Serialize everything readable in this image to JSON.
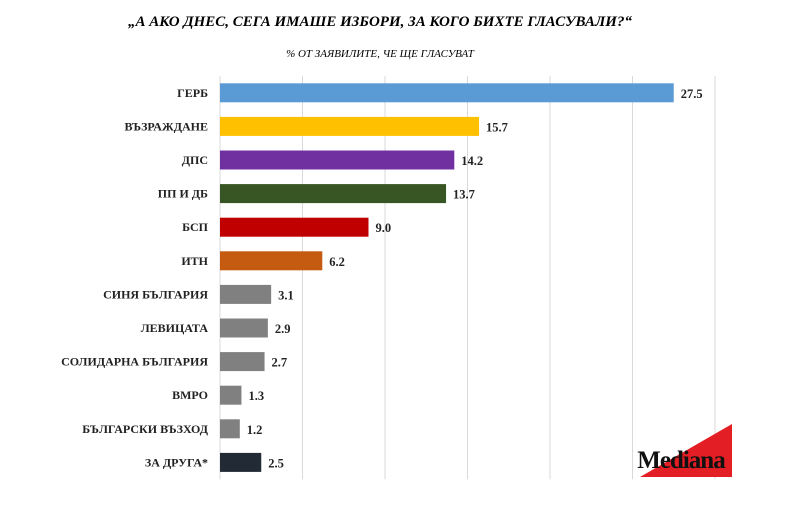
{
  "chart_data": {
    "type": "bar",
    "orientation": "horizontal",
    "title": "„А АКО ДНЕС, СЕГА ИМАШЕ ИЗБОРИ, ЗА КОГО БИХТЕ ГЛАСУВАЛИ?“",
    "subtitle": "% ОТ ЗАЯВИЛИТЕ, ЧЕ ЩЕ ГЛАСУВАТ",
    "xlim": [
      0,
      30
    ],
    "grid": true,
    "categories": [
      "ГЕРБ",
      "ВЪЗРАЖДАНЕ",
      "ДПС",
      "ПП И ДБ",
      "БСП",
      "ИТН",
      "СИНЯ БЪЛГАРИЯ",
      "ЛЕВИЦАТА",
      "СОЛИДАРНА БЪЛГАРИЯ",
      "ВМРО",
      "БЪЛГАРСКИ ВЪЗХОД",
      "ЗА ДРУГА*"
    ],
    "values": [
      27.5,
      15.7,
      14.2,
      13.7,
      9.0,
      6.2,
      3.1,
      2.9,
      2.7,
      1.3,
      1.2,
      2.5
    ],
    "value_labels": [
      "27.5",
      "15.7",
      "14.2",
      "13.7",
      "9.0",
      "6.2",
      "3.1",
      "2.9",
      "2.7",
      "1.3",
      "1.2",
      "2.5"
    ],
    "colors": [
      "#5b9bd5",
      "#ffc000",
      "#7030a0",
      "#375623",
      "#c00000",
      "#c55a11",
      "#808080",
      "#808080",
      "#808080",
      "#808080",
      "#808080",
      "#222a35"
    ]
  },
  "logo": {
    "text": "Mediana",
    "accent_color": "#e31e24"
  }
}
